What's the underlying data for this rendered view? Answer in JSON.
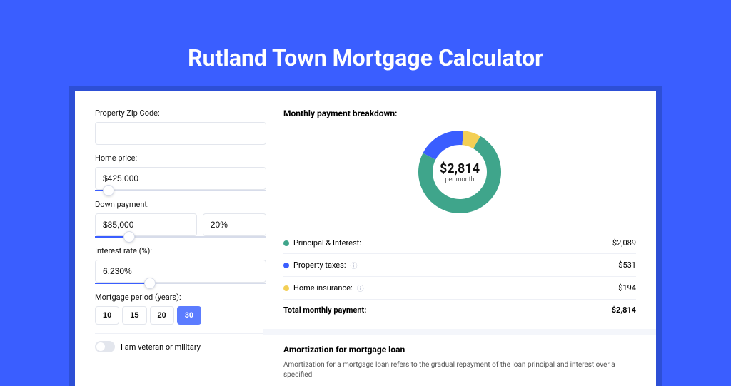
{
  "page": {
    "title": "Rutland Town Mortgage Calculator",
    "bg_color": "#3a5eff",
    "wrap_color": "#2d4fd6",
    "card_color": "#ffffff"
  },
  "form": {
    "zip_label": "Property Zip Code:",
    "zip_value": "",
    "home_price_label": "Home price:",
    "home_price_value": "$425,000",
    "home_price_slider_pct": 8,
    "down_payment_label": "Down payment:",
    "down_payment_value": "$85,000",
    "down_payment_pct": "20%",
    "down_payment_slider_pct": 20,
    "interest_label": "Interest rate (%):",
    "interest_value": "6.230%",
    "interest_slider_pct": 32,
    "period_label": "Mortgage period (years):",
    "period_options": [
      "10",
      "15",
      "20",
      "30"
    ],
    "period_selected_index": 3,
    "veteran_label": "I am veteran or military",
    "veteran_on": false
  },
  "breakdown": {
    "title": "Monthly payment breakdown:",
    "donut": {
      "center_amount": "$2,814",
      "center_sub": "per month",
      "segments": [
        {
          "label": "Principal & Interest",
          "value": 2089,
          "color": "#3fa58b"
        },
        {
          "label": "Property taxes",
          "value": 531,
          "color": "#3a5eff"
        },
        {
          "label": "Home insurance",
          "value": 194,
          "color": "#f3cf55"
        }
      ],
      "inner_radius": 38,
      "outer_radius": 58,
      "start_angle_deg": -60
    },
    "rows": [
      {
        "dot": "#3fa58b",
        "label": "Principal & Interest:",
        "info": false,
        "amount": "$2,089"
      },
      {
        "dot": "#3a5eff",
        "label": "Property taxes:",
        "info": true,
        "amount": "$531"
      },
      {
        "dot": "#f3cf55",
        "label": "Home insurance:",
        "info": true,
        "amount": "$194"
      }
    ],
    "total_label": "Total monthly payment:",
    "total_amount": "$2,814"
  },
  "amort": {
    "title": "Amortization for mortgage loan",
    "body": "Amortization for a mortgage loan refers to the gradual repayment of the loan principal and interest over a specified"
  }
}
